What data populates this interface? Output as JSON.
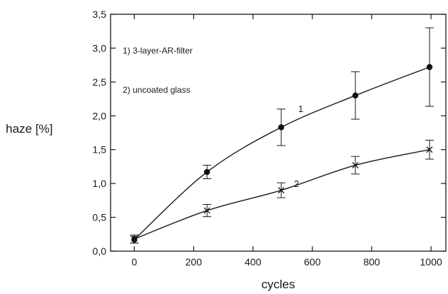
{
  "chart_data": {
    "type": "line",
    "title": "",
    "xlabel": "cycles",
    "ylabel": "haze [%]",
    "xlim": [
      -80,
      1050
    ],
    "ylim": [
      0,
      3.5
    ],
    "x_ticks": [
      0,
      200,
      400,
      600,
      800,
      1000
    ],
    "x_tick_labels": [
      "0",
      "200",
      "400",
      "600",
      "800",
      "1000"
    ],
    "y_ticks": [
      0,
      0.5,
      1.0,
      1.5,
      2.0,
      2.5,
      3.0,
      3.5
    ],
    "y_tick_labels": [
      "0,0",
      "0,5",
      "1,0",
      "1,5",
      "2,0",
      "2,5",
      "3,0",
      "3,5"
    ],
    "grid": false,
    "legend": {
      "placement": "top-left",
      "entries": [
        "1) 3-layer-AR-filter",
        "2) uncoated glass"
      ]
    },
    "series": [
      {
        "label": "1",
        "marker": "circle",
        "points": [
          {
            "x": 0,
            "y": 0.17,
            "err": 0.05
          },
          {
            "x": 245,
            "y": 1.17,
            "err": 0.1
          },
          {
            "x": 495,
            "y": 1.83,
            "err": 0.27
          },
          {
            "x": 745,
            "y": 2.3,
            "err": 0.35
          },
          {
            "x": 995,
            "y": 2.72,
            "err": 0.58
          }
        ]
      },
      {
        "label": "2",
        "marker": "x",
        "points": [
          {
            "x": 0,
            "y": 0.18,
            "err": 0.06
          },
          {
            "x": 245,
            "y": 0.6,
            "err": 0.09
          },
          {
            "x": 495,
            "y": 0.9,
            "err": 0.11
          },
          {
            "x": 745,
            "y": 1.27,
            "err": 0.13
          },
          {
            "x": 995,
            "y": 1.5,
            "err": 0.14
          }
        ]
      }
    ]
  },
  "colors": {
    "axis": "#1a1a1a",
    "line": "#1a1a1a",
    "marker": "#111111"
  }
}
